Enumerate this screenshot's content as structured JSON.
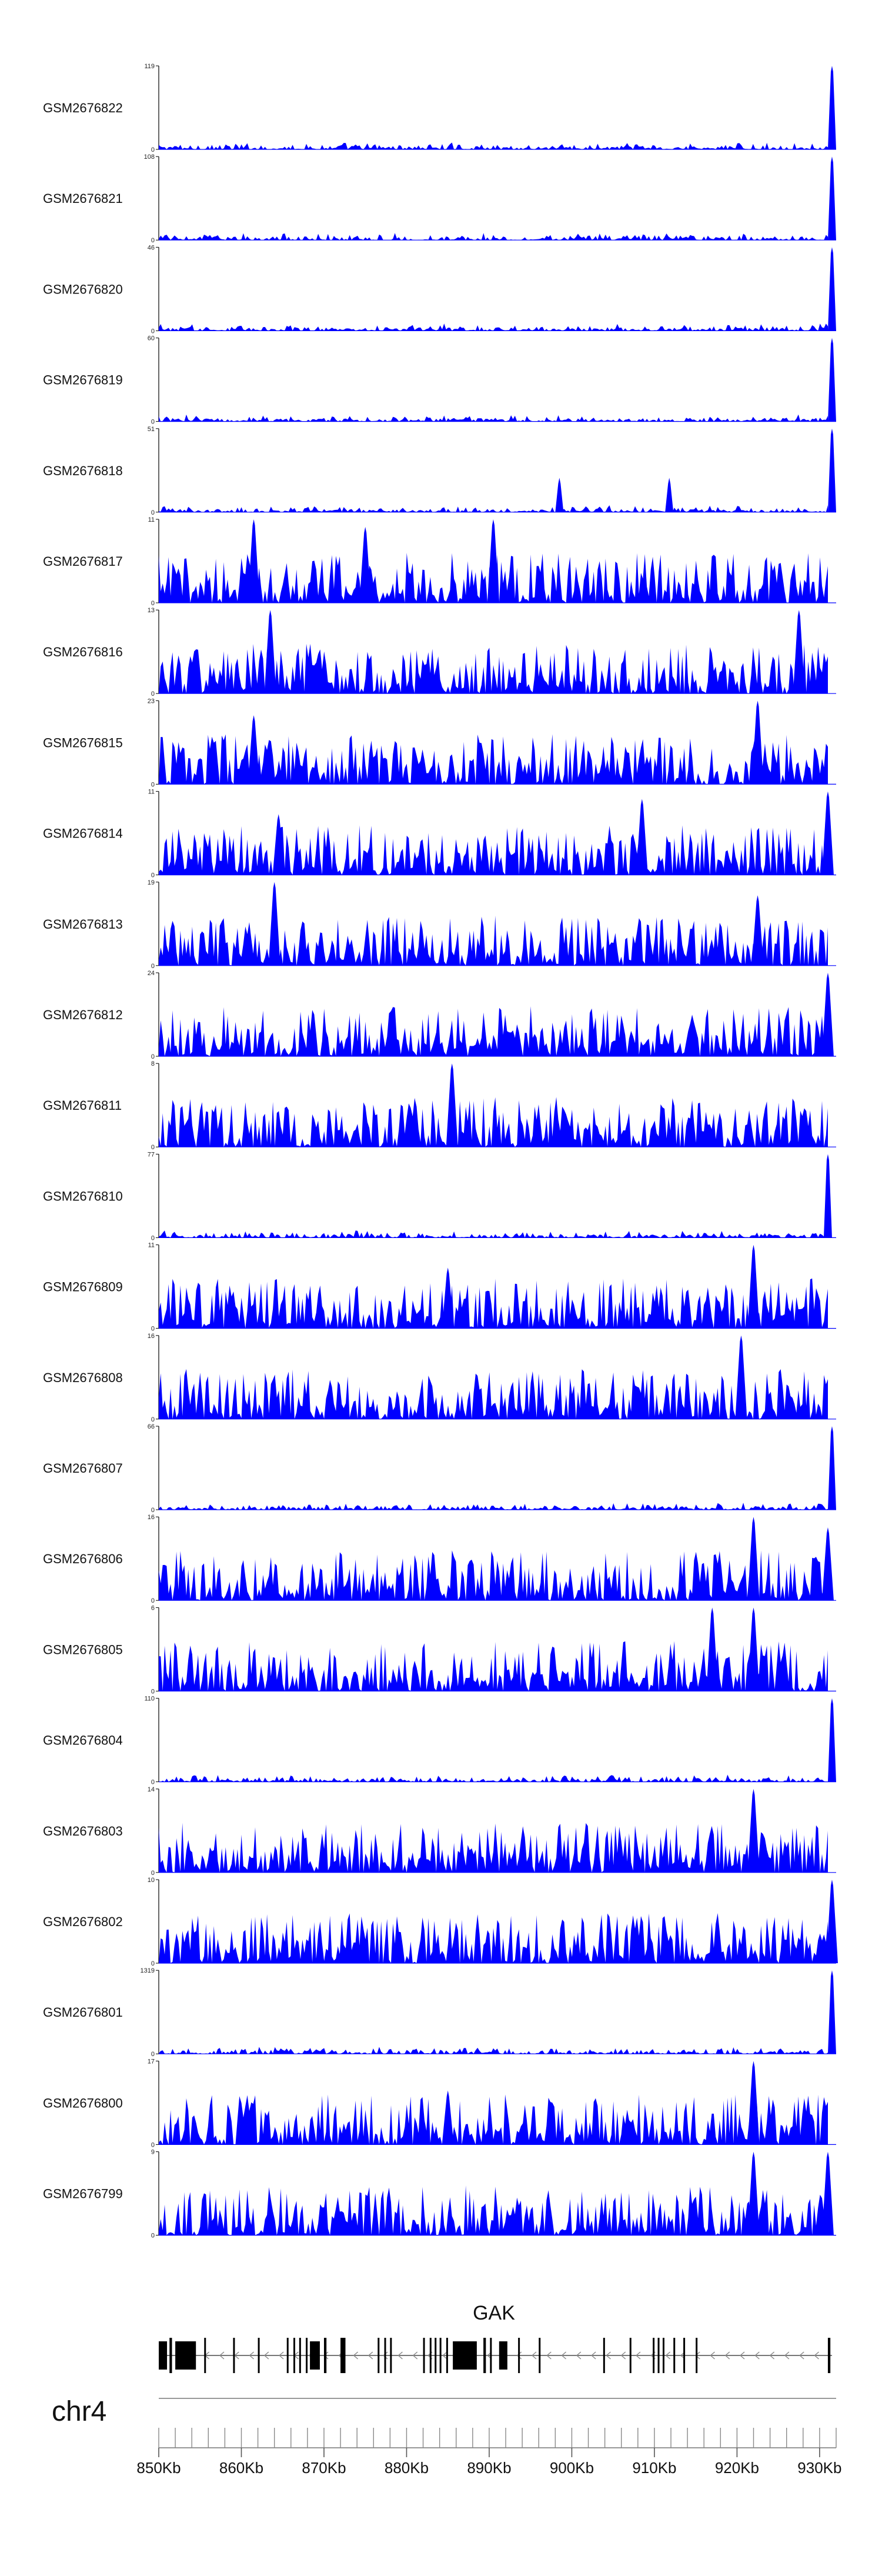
{
  "chart_data": {
    "type": "area",
    "title": "",
    "chromosome": "chr4",
    "x_range_kb": [
      850,
      932
    ],
    "x_ticks": [
      {
        "kb": 850,
        "label": "850Kb"
      },
      {
        "kb": 860,
        "label": "860Kb"
      },
      {
        "kb": 870,
        "label": "870Kb"
      },
      {
        "kb": 880,
        "label": "880Kb"
      },
      {
        "kb": 890,
        "label": "890Kb"
      },
      {
        "kb": 900,
        "label": "900Kb"
      },
      {
        "kb": 910,
        "label": "910Kb"
      },
      {
        "kb": 920,
        "label": "920Kb"
      },
      {
        "kb": 930,
        "label": "930Kb"
      }
    ],
    "track_color": "#0000ff",
    "series": [
      {
        "name": "GSM2676822",
        "ymax_label": "119",
        "ymin_label": "0",
        "ymax": 119,
        "peaks": [
          [
            931.5,
            119
          ]
        ]
      },
      {
        "name": "GSM2676821",
        "ymax_label": "108",
        "ymin_label": "0",
        "ymax": 108,
        "peaks": [
          [
            931.5,
            108
          ]
        ]
      },
      {
        "name": "GSM2676820",
        "ymax_label": "46",
        "ymin_label": "0",
        "ymax": 46,
        "peaks": [
          [
            931.5,
            46
          ]
        ]
      },
      {
        "name": "GSM2676819",
        "ymax_label": "60",
        "ymin_label": "0",
        "ymax": 60,
        "peaks": [
          [
            931.5,
            60
          ]
        ]
      },
      {
        "name": "GSM2676818",
        "ymax_label": "51",
        "ymin_label": "0",
        "ymax": 51,
        "peaks": [
          [
            931.5,
            51
          ],
          [
            898.5,
            21
          ],
          [
            911.8,
            21
          ]
        ]
      },
      {
        "name": "GSM2676817",
        "ymax_label": "11",
        "ymin_label": "0",
        "ymax": 11,
        "peaks": [
          [
            861.5,
            11
          ],
          [
            875.0,
            10
          ],
          [
            890.5,
            11
          ]
        ]
      },
      {
        "name": "GSM2676816",
        "ymax_label": "13",
        "ymin_label": "0",
        "ymax": 13,
        "peaks": [
          [
            863.5,
            13
          ],
          [
            927.5,
            13
          ]
        ]
      },
      {
        "name": "GSM2676815",
        "ymax_label": "23",
        "ymin_label": "0",
        "ymax": 23,
        "peaks": [
          [
            861.5,
            19
          ],
          [
            922.5,
            23
          ]
        ]
      },
      {
        "name": "GSM2676814",
        "ymax_label": "11",
        "ymin_label": "0",
        "ymax": 11,
        "peaks": [
          [
            864.5,
            8
          ],
          [
            908.5,
            10
          ],
          [
            931.0,
            11
          ]
        ]
      },
      {
        "name": "GSM2676813",
        "ymax_label": "19",
        "ymin_label": "0",
        "ymax": 19,
        "peaks": [
          [
            864.0,
            19
          ],
          [
            922.5,
            16
          ]
        ]
      },
      {
        "name": "GSM2676812",
        "ymax_label": "24",
        "ymin_label": "0",
        "ymax": 24,
        "peaks": [
          [
            931.0,
            24
          ]
        ]
      },
      {
        "name": "GSM2676811",
        "ymax_label": "8",
        "ymin_label": "0",
        "ymax": 8,
        "peaks": [
          [
            885.5,
            8
          ]
        ]
      },
      {
        "name": "GSM2676810",
        "ymax_label": "77",
        "ymin_label": "0",
        "ymax": 77,
        "peaks": [
          [
            931.0,
            77
          ]
        ]
      },
      {
        "name": "GSM2676809",
        "ymax_label": "11",
        "ymin_label": "0",
        "ymax": 11,
        "peaks": [
          [
            922.0,
            11
          ],
          [
            885.0,
            8
          ]
        ]
      },
      {
        "name": "GSM2676808",
        "ymax_label": "16",
        "ymin_label": "0",
        "ymax": 16,
        "peaks": [
          [
            920.5,
            16
          ]
        ]
      },
      {
        "name": "GSM2676807",
        "ymax_label": "66",
        "ymin_label": "0",
        "ymax": 66,
        "peaks": [
          [
            931.5,
            66
          ]
        ]
      },
      {
        "name": "GSM2676806",
        "ymax_label": "16",
        "ymin_label": "0",
        "ymax": 16,
        "peaks": [
          [
            922.0,
            16
          ],
          [
            931.0,
            14
          ]
        ]
      },
      {
        "name": "GSM2676805",
        "ymax_label": "6",
        "ymin_label": "0",
        "ymax": 6,
        "peaks": [
          [
            917.0,
            6
          ],
          [
            922.0,
            6
          ]
        ]
      },
      {
        "name": "GSM2676804",
        "ymax_label": "110",
        "ymin_label": "0",
        "ymax": 110,
        "peaks": [
          [
            931.5,
            110
          ]
        ]
      },
      {
        "name": "GSM2676803",
        "ymax_label": "14",
        "ymin_label": "0",
        "ymax": 14,
        "peaks": [
          [
            922.0,
            14
          ]
        ]
      },
      {
        "name": "GSM2676802",
        "ymax_label": "10",
        "ymin_label": "0",
        "ymax": 10,
        "peaks": [
          [
            931.5,
            10
          ]
        ]
      },
      {
        "name": "GSM2676801",
        "ymax_label": "1319",
        "ymin_label": "0",
        "ymax": 1319,
        "peaks": [
          [
            931.5,
            1319
          ]
        ]
      },
      {
        "name": "GSM2676800",
        "ymax_label": "17",
        "ymin_label": "0",
        "ymax": 17,
        "peaks": [
          [
            922.0,
            17
          ],
          [
            885.0,
            11
          ]
        ]
      },
      {
        "name": "GSM2676799",
        "ymax_label": "9",
        "ymin_label": "0",
        "ymax": 9,
        "peaks": [
          [
            922.0,
            9
          ],
          [
            931.0,
            9
          ]
        ]
      }
    ],
    "gene": {
      "name": "GAK",
      "strand": "-",
      "start_kb": 850,
      "end_kb": 931.5,
      "exons_kb": [
        [
          850.0,
          851.0
        ],
        [
          851.3,
          851.6
        ],
        [
          852.0,
          854.5
        ],
        [
          855.5,
          855.7
        ],
        [
          859.0,
          859.2
        ],
        [
          862.0,
          862.2
        ],
        [
          865.5,
          865.6
        ],
        [
          866.3,
          866.5
        ],
        [
          867.0,
          867.2
        ],
        [
          867.8,
          868.0
        ],
        [
          868.3,
          869.5
        ],
        [
          870.0,
          870.3
        ],
        [
          872.0,
          872.6
        ],
        [
          876.5,
          876.6
        ],
        [
          877.3,
          877.5
        ],
        [
          878.0,
          878.2
        ],
        [
          882.0,
          882.2
        ],
        [
          882.8,
          883.0
        ],
        [
          883.4,
          883.6
        ],
        [
          884.0,
          884.2
        ],
        [
          884.8,
          885.0
        ],
        [
          885.6,
          888.5
        ],
        [
          889.3,
          889.6
        ],
        [
          890.1,
          890.3
        ],
        [
          891.2,
          892.2
        ],
        [
          893.5,
          893.7
        ],
        [
          896.0,
          896.2
        ],
        [
          903.8,
          904.0
        ],
        [
          907.0,
          907.2
        ],
        [
          909.8,
          910.0
        ],
        [
          910.4,
          910.6
        ],
        [
          911.0,
          911.2
        ],
        [
          912.3,
          912.5
        ],
        [
          913.5,
          913.7
        ],
        [
          915.0,
          915.2
        ],
        [
          931.0,
          931.3
        ]
      ]
    }
  }
}
